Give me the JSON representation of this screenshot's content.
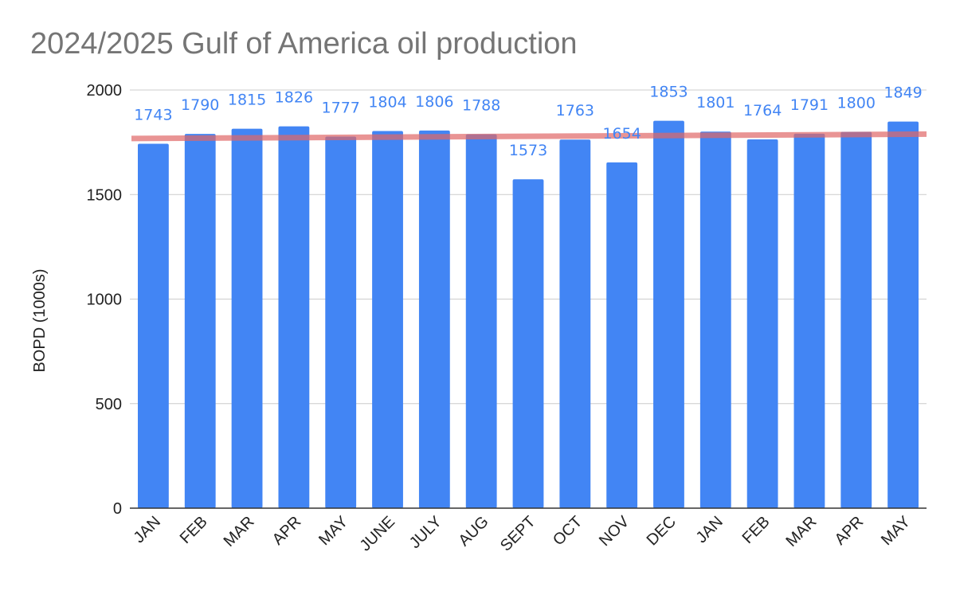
{
  "chart_data": {
    "type": "bar",
    "title": "2024/2025 Gulf of America oil production",
    "xlabel": "",
    "ylabel": "BOPD (1000s)",
    "ylim": [
      0,
      2000
    ],
    "yticks": [
      0,
      500,
      1000,
      1500,
      2000
    ],
    "categories": [
      "JAN",
      "FEB",
      "MAR",
      "APR",
      "MAY",
      "JUNE",
      "JULY",
      "AUG",
      "SEPT",
      "OCT",
      "NOV",
      "DEC",
      "JAN",
      "FEB",
      "MAR",
      "APR",
      "MAY"
    ],
    "values": [
      1743,
      1790,
      1815,
      1826,
      1777,
      1804,
      1806,
      1788,
      1573,
      1763,
      1654,
      1853,
      1801,
      1764,
      1791,
      1800,
      1849
    ],
    "trendline": {
      "type": "linear",
      "start_value": 1768,
      "end_value": 1789
    },
    "grid": true,
    "legend": "none",
    "colors": {
      "bar": "#4285f4",
      "label": "#4285f4",
      "trend": "#e06666",
      "grid": "#cccccc",
      "axis": "#333333",
      "title": "#757575"
    }
  }
}
